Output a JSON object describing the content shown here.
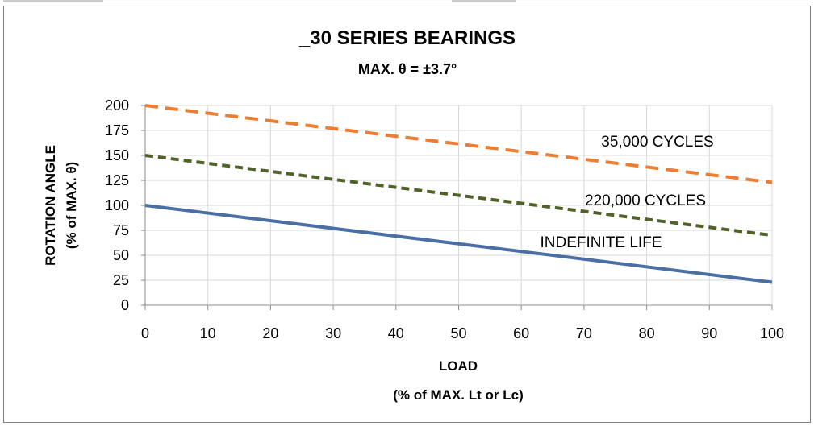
{
  "chart_data": {
    "type": "line",
    "title": "_30 SERIES BEARINGS",
    "subtitle": "MAX. θ = ±3.7°",
    "xlabel_line1": "LOAD",
    "xlabel_line2": "(% of MAX. Lt or Lc)",
    "ylabel_line1": "ROTATION ANGLE",
    "ylabel_line2": "(% of MAX. θ)",
    "xlim": [
      0,
      100
    ],
    "ylim": [
      0,
      200
    ],
    "x_ticks": [
      "0",
      "10",
      "20",
      "30",
      "40",
      "50",
      "60",
      "70",
      "80",
      "90",
      "100"
    ],
    "y_ticks": [
      "0",
      "25",
      "50",
      "75",
      "100",
      "125",
      "150",
      "175",
      "200"
    ],
    "grid": true,
    "series": [
      {
        "label": "35,000 CYCLES",
        "x": [
          0,
          100
        ],
        "y": [
          200,
          123
        ],
        "color": "#ED7D31",
        "style": "dashed"
      },
      {
        "label": "220,000 CYCLES",
        "x": [
          0,
          100
        ],
        "y": [
          150,
          70
        ],
        "color": "#4F6228",
        "style": "dashed"
      },
      {
        "label": "INDEFINITE LIFE",
        "x": [
          0,
          100
        ],
        "y": [
          100,
          23
        ],
        "color": "#4A6FA5",
        "style": "solid"
      }
    ]
  }
}
